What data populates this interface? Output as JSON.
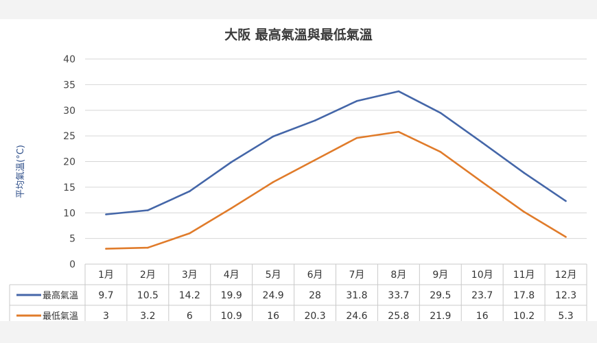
{
  "chart_data": {
    "type": "line",
    "title": "大阪 最高氣溫與最低氣溫",
    "ylabel": "平均氣溫(°C)",
    "ylim": [
      0,
      40
    ],
    "yticks": [
      "0",
      "5",
      "10",
      "15",
      "20",
      "25",
      "30",
      "35",
      "40"
    ],
    "grid": true,
    "legend": "data-table",
    "categories": [
      "1月",
      "2月",
      "3月",
      "4月",
      "5月",
      "6月",
      "7月",
      "8月",
      "9月",
      "10月",
      "11月",
      "12月"
    ],
    "series": [
      {
        "name": "最高氣溫",
        "color": "#4466a8",
        "values": [
          9.7,
          10.5,
          14.2,
          19.9,
          24.9,
          28,
          31.8,
          33.7,
          29.5,
          23.7,
          17.8,
          12.3
        ],
        "labels": [
          "9.7",
          "10.5",
          "14.2",
          "19.9",
          "24.9",
          "28",
          "31.8",
          "33.7",
          "29.5",
          "23.7",
          "17.8",
          "12.3"
        ]
      },
      {
        "name": "最低氣溫",
        "color": "#e07b2a",
        "values": [
          3,
          3.2,
          6,
          10.9,
          16,
          20.3,
          24.6,
          25.8,
          21.9,
          16,
          10.2,
          5.3
        ],
        "labels": [
          "3",
          "3.2",
          "6",
          "10.9",
          "16",
          "20.3",
          "24.6",
          "25.8",
          "21.9",
          "16",
          "10.2",
          "5.3"
        ]
      }
    ]
  }
}
